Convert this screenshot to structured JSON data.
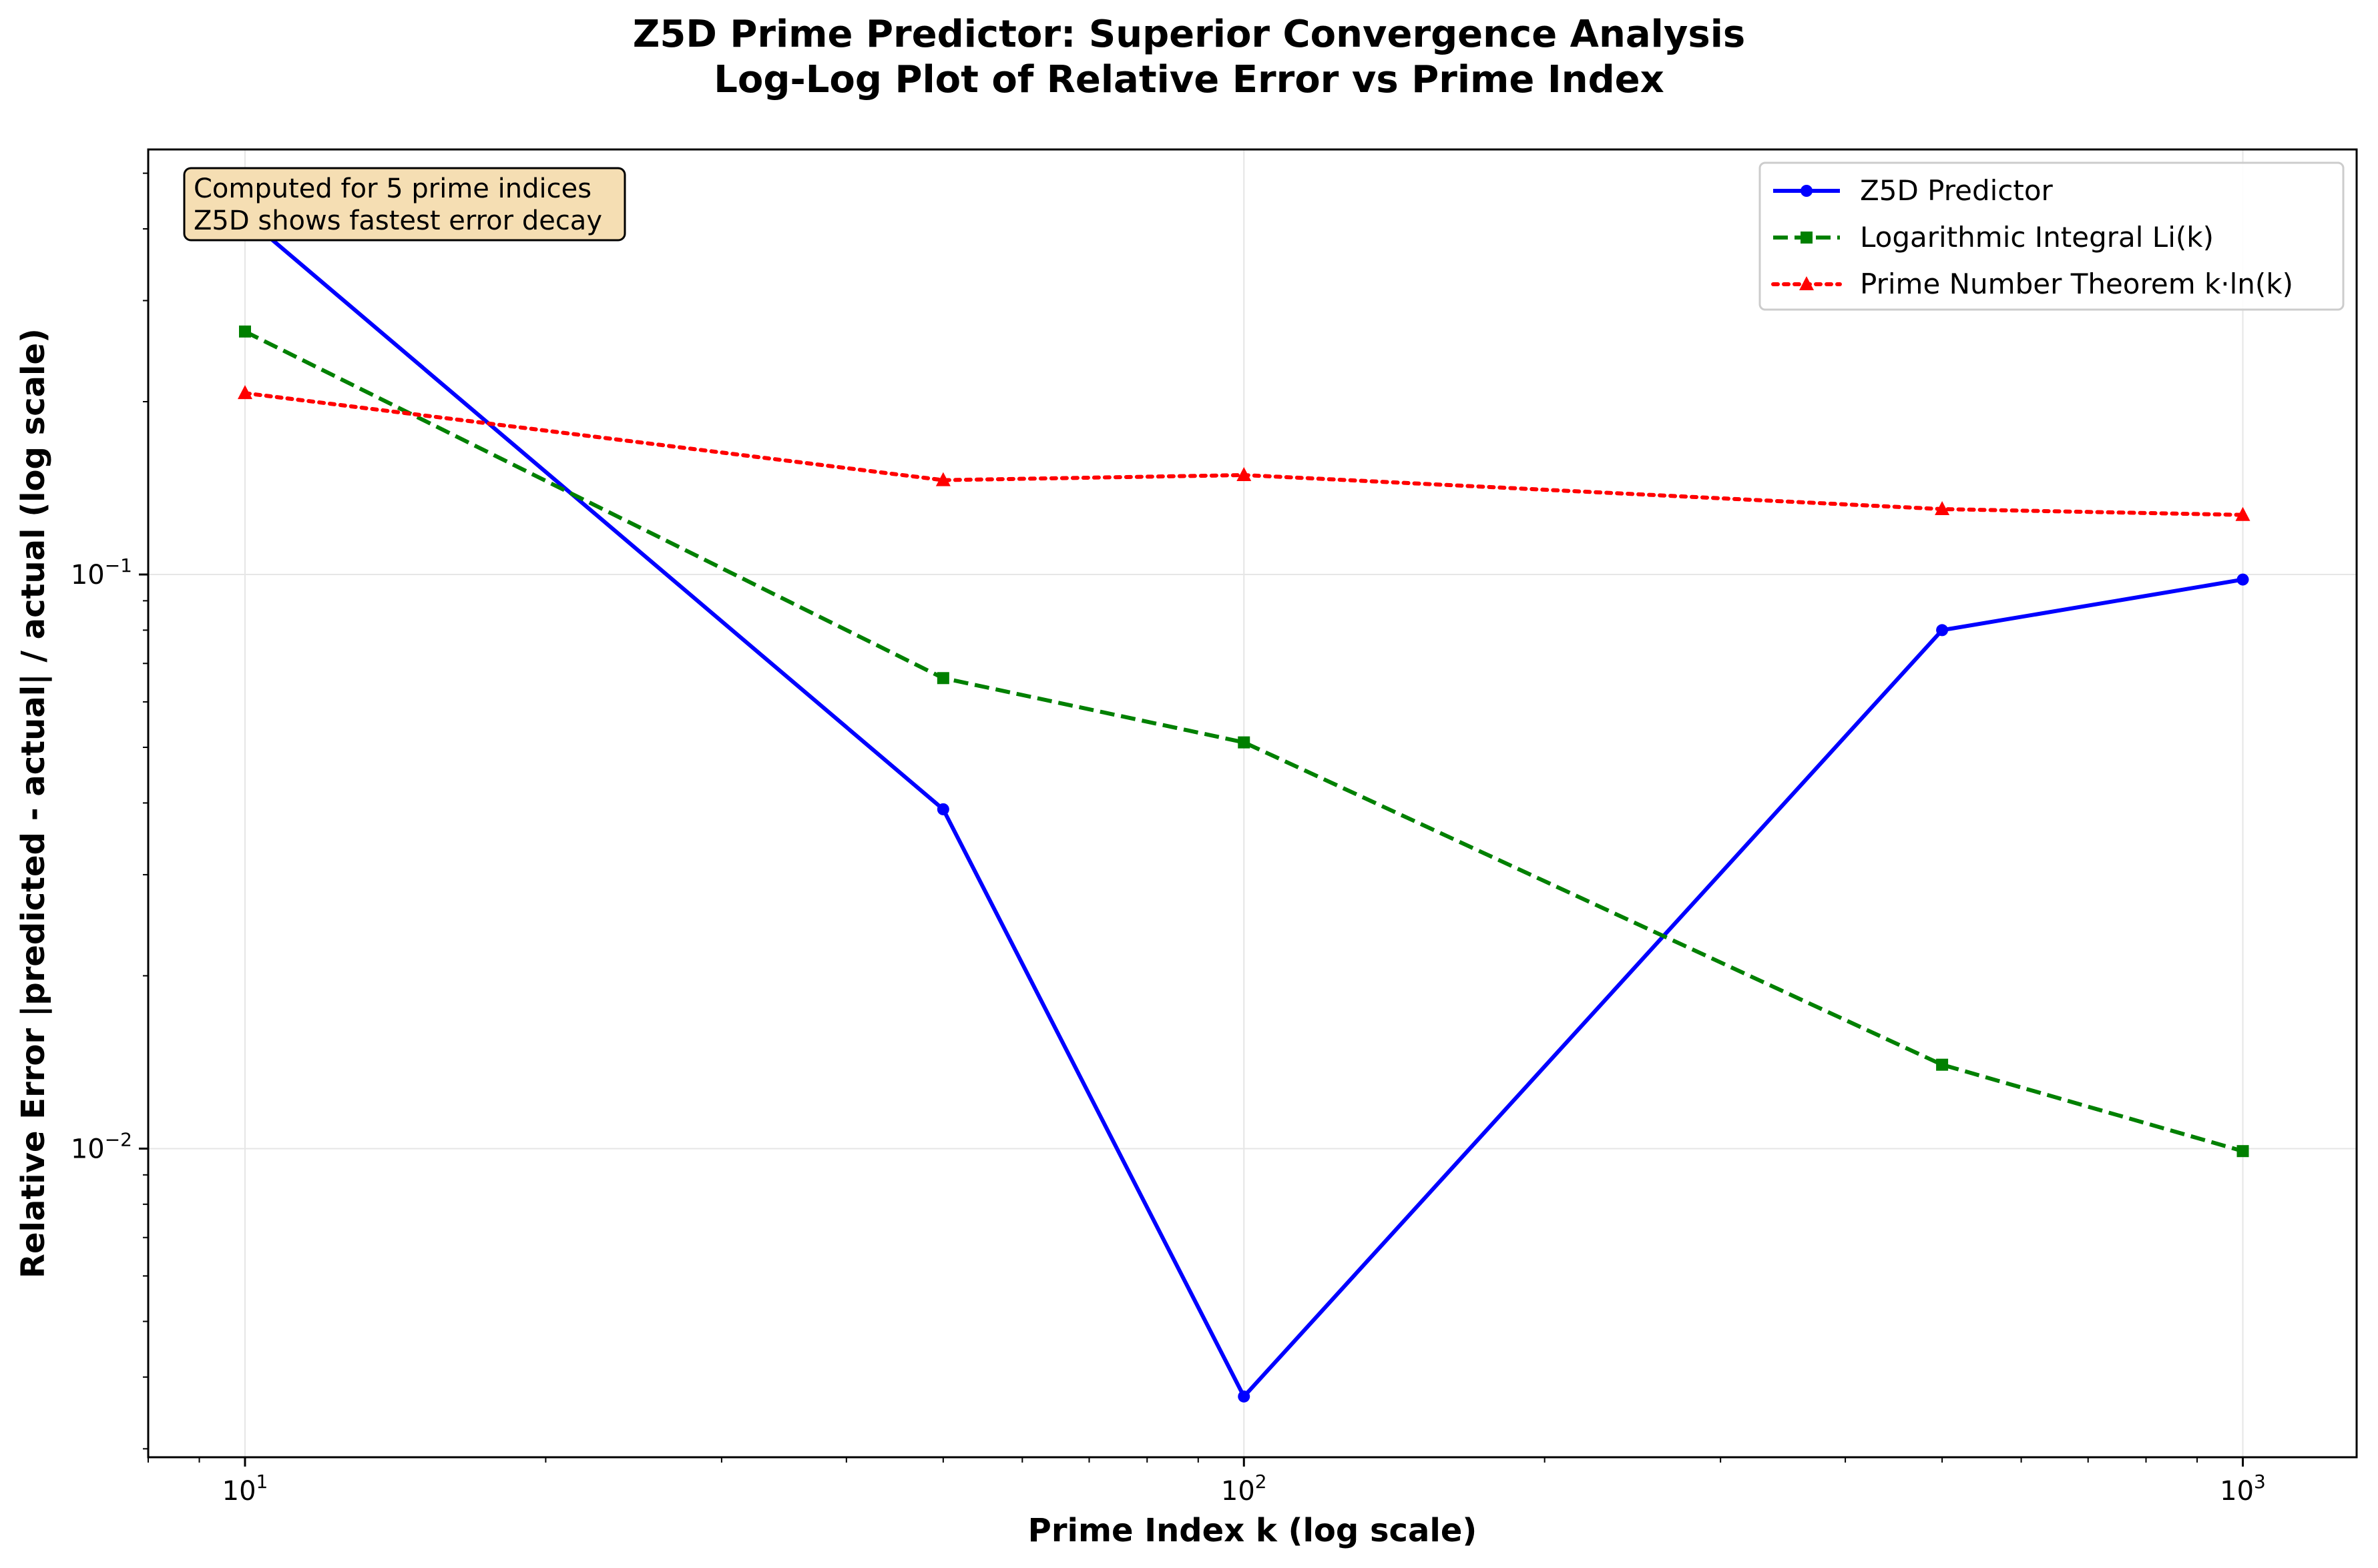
{
  "chart_data": {
    "type": "line",
    "title": "Z5D Prime Predictor: Superior Convergence Analysis",
    "subtitle": "Log-Log Plot of Relative Error vs Prime Index",
    "xlabel": "Prime Index k (log scale)",
    "ylabel": "Relative Error |predicted - actual| / actual (log scale)",
    "x_scale": "log",
    "y_scale": "log",
    "xlim": [
      8.0,
      1300
    ],
    "ylim": [
      0.0029,
      0.55
    ],
    "grid": true,
    "x_ticks": [
      {
        "value": 10,
        "base": "10",
        "exp": "1"
      },
      {
        "value": 100,
        "base": "10",
        "exp": "2"
      },
      {
        "value": 1000,
        "base": "10",
        "exp": "3"
      }
    ],
    "y_ticks": [
      {
        "value": 0.01,
        "base": "10",
        "exp": "−2"
      },
      {
        "value": 0.1,
        "base": "10",
        "exp": "−1"
      }
    ],
    "legend_placement": "top-right",
    "series": [
      {
        "name": "Z5D Predictor",
        "color": "#0000ff",
        "style": "solid",
        "marker": "circle",
        "x": [
          10,
          50,
          100,
          500,
          1000
        ],
        "y": [
          0.42,
          0.039,
          0.0037,
          0.08,
          0.098
        ]
      },
      {
        "name": "Logarithmic Integral Li(k)",
        "color": "#008000",
        "style": "dashed",
        "marker": "square",
        "x": [
          10,
          50,
          100,
          500,
          1000
        ],
        "y": [
          0.265,
          0.066,
          0.051,
          0.014,
          0.0099
        ]
      },
      {
        "name": "Prime Number Theorem k·ln(k)",
        "color": "#ff0000",
        "style": "dotted",
        "marker": "triangle",
        "x": [
          10,
          50,
          100,
          500,
          1000
        ],
        "y": [
          0.207,
          0.146,
          0.149,
          0.13,
          0.127
        ]
      }
    ],
    "annotation": {
      "lines": [
        "Computed for 5 prime indices",
        "Z5D shows fastest error decay"
      ],
      "box_color": "#f5deb3"
    }
  }
}
